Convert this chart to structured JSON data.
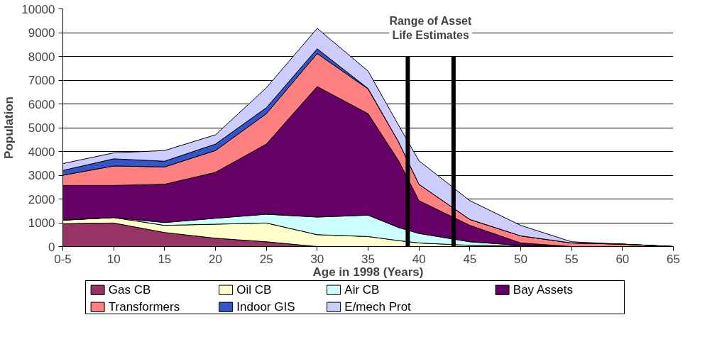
{
  "chart_data": {
    "type": "area",
    "stacked": true,
    "xlabel": "Age in 1998 (Years)",
    "ylabel": "Population",
    "x": [
      5,
      10,
      15,
      20,
      25,
      30,
      35,
      38,
      40,
      45,
      50,
      55,
      60,
      65
    ],
    "xlim": [
      5,
      65
    ],
    "xticks": [
      {
        "value": 5,
        "label": "0-5"
      },
      10,
      15,
      20,
      25,
      30,
      35,
      40,
      45,
      50,
      55,
      60,
      65
    ],
    "ylim": [
      0,
      10000
    ],
    "yticks": [
      0,
      1000,
      2000,
      3000,
      4000,
      5000,
      6000,
      7000,
      8000,
      9000,
      10000
    ],
    "grid": "y",
    "legend": "bottom",
    "series": [
      {
        "name": "Gas CB",
        "color": "#993366",
        "values": [
          960,
          990,
          590,
          350,
          200,
          0,
          0,
          0,
          0,
          0,
          0,
          0,
          0,
          0
        ]
      },
      {
        "name": "Oil CB",
        "color": "#ffffcc",
        "values": [
          150,
          230,
          300,
          590,
          790,
          500,
          420,
          250,
          150,
          50,
          20,
          0,
          0,
          0
        ]
      },
      {
        "name": "Air CB",
        "color": "#ccffff",
        "values": [
          0,
          0,
          120,
          250,
          370,
          740,
          900,
          550,
          400,
          150,
          30,
          0,
          0,
          0
        ]
      },
      {
        "name": "Bay Assets",
        "color": "#660066",
        "values": [
          1460,
          1350,
          1610,
          1930,
          2950,
          5490,
          4270,
          2810,
          1380,
          690,
          100,
          0,
          0,
          0
        ]
      },
      {
        "name": "Transformers",
        "color": "#ff8080",
        "values": [
          430,
          820,
          730,
          920,
          1280,
          1390,
          1040,
          790,
          690,
          250,
          300,
          150,
          100,
          0
        ]
      },
      {
        "name": "Indoor GIS",
        "color": "#3355cc",
        "values": [
          200,
          300,
          240,
          270,
          250,
          200,
          20,
          0,
          0,
          0,
          0,
          0,
          0,
          0
        ]
      },
      {
        "name": "E/mech Prot",
        "color": "#ccccff",
        "values": [
          290,
          250,
          450,
          390,
          840,
          860,
          730,
          700,
          990,
          790,
          440,
          50,
          0,
          0
        ]
      }
    ],
    "ref_lines": [
      {
        "axis": "x",
        "value": 38.9,
        "label": null,
        "color": "#000000"
      },
      {
        "axis": "x",
        "value": 43.4,
        "label": null,
        "color": "#000000"
      }
    ],
    "annotations": [
      "Range of Asset Life Estimates"
    ]
  }
}
